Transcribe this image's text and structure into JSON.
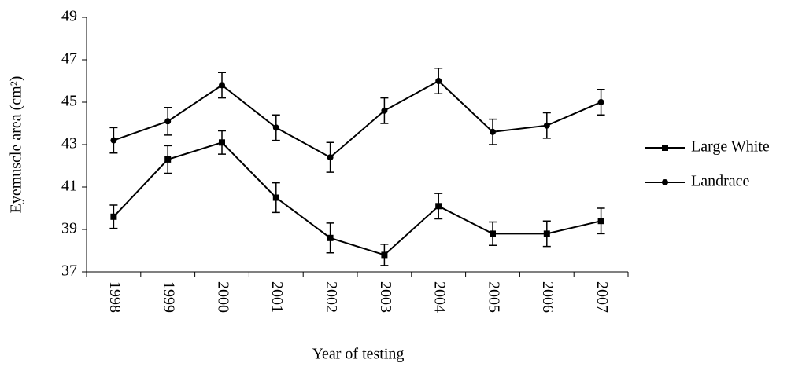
{
  "chart_data": {
    "type": "line",
    "y_label": "Eyemuscle area (cm²)",
    "x_label": "Year of testing",
    "categories": [
      "1998",
      "1999",
      "2000",
      "2001",
      "2002",
      "2003",
      "2004",
      "2005",
      "2006",
      "2007"
    ],
    "series": [
      {
        "name": "Large White",
        "color": "#000000",
        "marker": "square",
        "values": [
          39.6,
          42.3,
          43.1,
          40.5,
          38.6,
          37.8,
          40.1,
          38.8,
          38.8,
          39.4
        ],
        "errors": [
          0.55,
          0.65,
          0.55,
          0.7,
          0.7,
          0.5,
          0.6,
          0.55,
          0.6,
          0.6
        ]
      },
      {
        "name": "Landrace",
        "color": "#000000",
        "marker": "circle",
        "values": [
          43.2,
          44.1,
          45.8,
          43.8,
          42.4,
          44.6,
          46.0,
          43.6,
          43.9,
          45.0
        ],
        "errors": [
          0.6,
          0.65,
          0.6,
          0.6,
          0.7,
          0.6,
          0.6,
          0.6,
          0.6,
          0.6
        ]
      }
    ],
    "ylim": [
      37,
      49
    ],
    "yticks": [
      37,
      39,
      41,
      43,
      45,
      47,
      49
    ],
    "grid": false,
    "legend": "right"
  }
}
